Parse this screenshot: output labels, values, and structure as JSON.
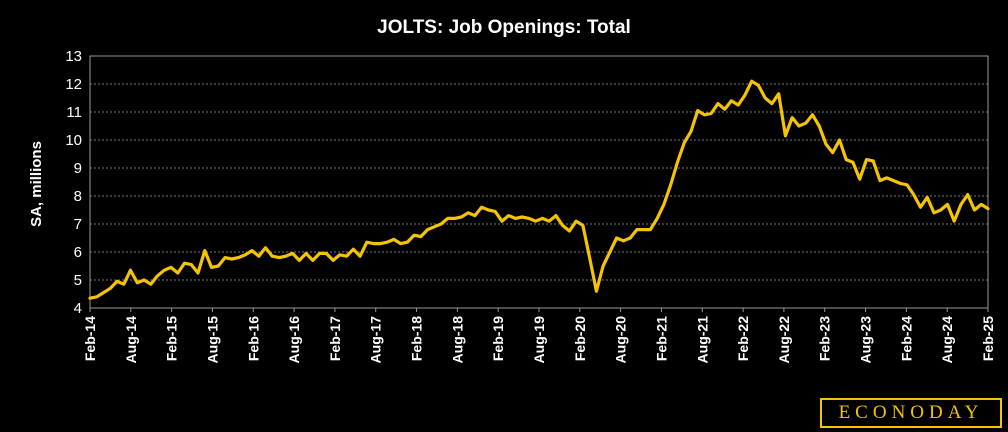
{
  "chart_data": {
    "type": "line",
    "title": "JOLTS: Job Openings: Total",
    "ylabel": "SA, millions",
    "xlabel": "",
    "ylim": [
      4,
      13
    ],
    "yticks": [
      4,
      5,
      6,
      7,
      8,
      9,
      10,
      11,
      12,
      13
    ],
    "xticks": [
      "Feb-14",
      "Aug-14",
      "Feb-15",
      "Aug-15",
      "Feb-16",
      "Aug-16",
      "Feb-17",
      "Aug-17",
      "Feb-18",
      "Aug-18",
      "Feb-19",
      "Aug-19",
      "Feb-20",
      "Aug-20",
      "Feb-21",
      "Aug-21",
      "Feb-22",
      "Aug-22",
      "Feb-23",
      "Aug-23",
      "Feb-24",
      "Aug-24",
      "Feb-25"
    ],
    "grid": true,
    "line_color": "#f5c400",
    "series": [
      {
        "values": [
          4.35,
          4.4,
          4.55,
          4.7,
          4.95,
          4.85,
          5.35,
          4.9,
          5.0,
          4.85,
          5.15,
          5.35,
          5.45,
          5.25,
          5.6,
          5.55,
          5.25,
          6.05,
          5.45,
          5.5,
          5.8,
          5.75,
          5.8,
          5.9,
          6.05,
          5.85,
          6.15,
          5.85,
          5.8,
          5.85,
          5.95,
          5.7,
          5.95,
          5.7,
          5.95,
          5.95,
          5.7,
          5.9,
          5.85,
          6.1,
          5.85,
          6.35,
          6.3,
          6.3,
          6.35,
          6.45,
          6.3,
          6.35,
          6.6,
          6.55,
          6.8,
          6.9,
          7.0,
          7.2,
          7.2,
          7.25,
          7.4,
          7.3,
          7.6,
          7.5,
          7.45,
          7.1,
          7.3,
          7.2,
          7.25,
          7.2,
          7.1,
          7.2,
          7.1,
          7.3,
          6.95,
          6.75,
          7.1,
          6.95,
          5.8,
          4.6,
          5.5,
          6.0,
          6.5,
          6.4,
          6.5,
          6.8,
          6.8,
          6.8,
          7.2,
          7.7,
          8.4,
          9.2,
          9.9,
          10.3,
          11.05,
          10.9,
          10.95,
          11.3,
          11.1,
          11.4,
          11.25,
          11.6,
          12.1,
          11.95,
          11.5,
          11.3,
          11.65,
          10.15,
          10.8,
          10.5,
          10.6,
          10.9,
          10.5,
          9.85,
          9.55,
          10.0,
          9.3,
          9.2,
          8.6,
          9.3,
          9.25,
          8.55,
          8.65,
          8.55,
          8.45,
          8.4,
          8.05,
          7.6,
          7.95,
          7.4,
          7.5,
          7.7,
          7.1,
          7.7,
          8.05,
          7.5,
          7.7,
          7.55
        ]
      }
    ]
  },
  "logo": {
    "text": "ECONODAY"
  }
}
